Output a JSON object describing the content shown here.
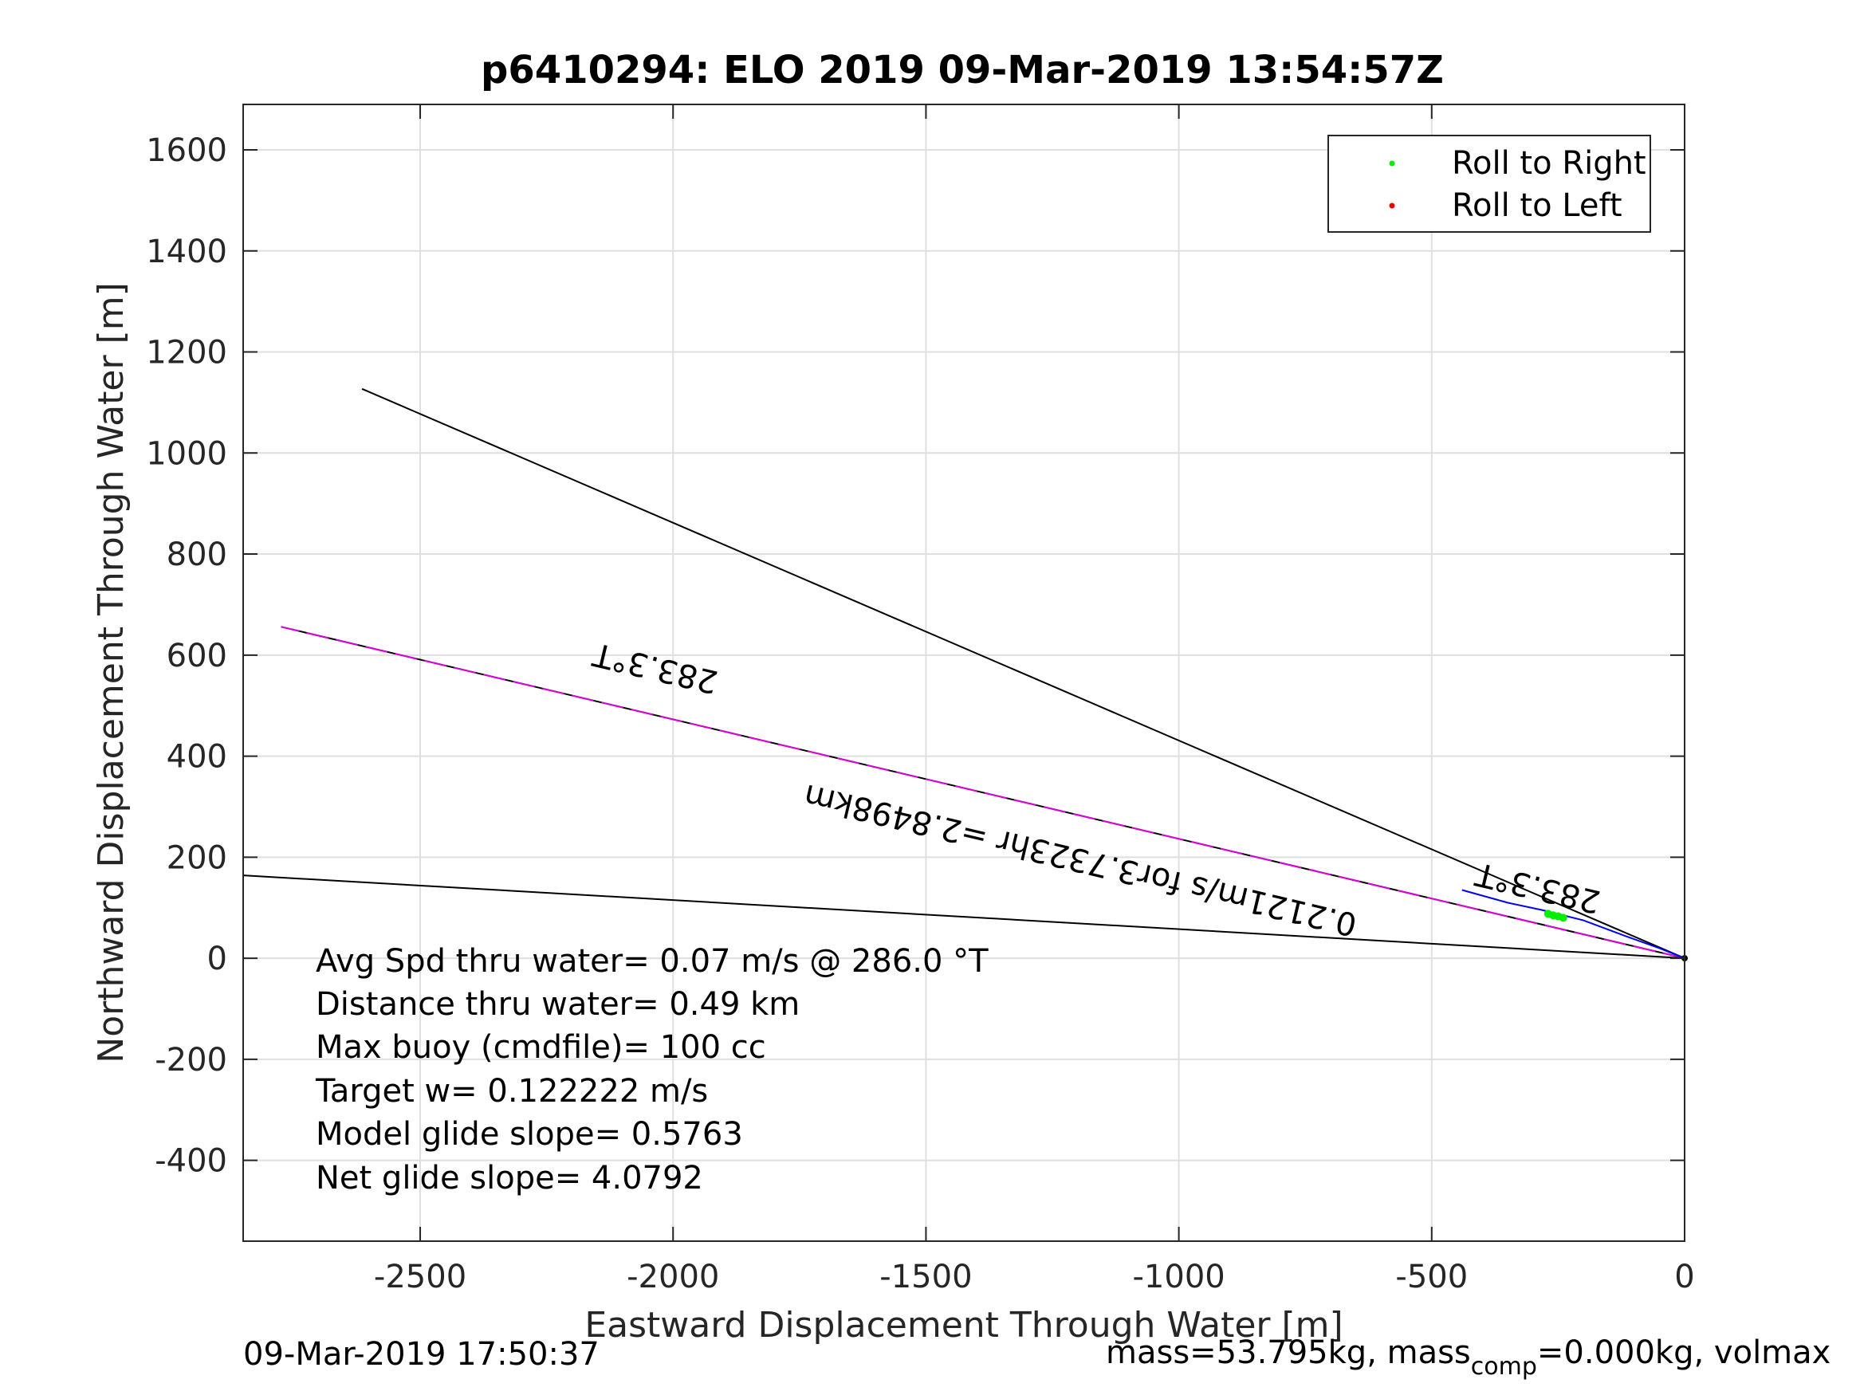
{
  "chart_data": {
    "type": "line",
    "title": "p6410294: ELO 2019 09-Mar-2019 13:54:57Z",
    "xlabel": "Eastward Displacement Through Water [m]",
    "ylabel": "Northward Displacement Through Water [m]",
    "xlim": [
      -2850,
      0
    ],
    "ylim": [
      -560,
      1690
    ],
    "xticks": [
      -2500,
      -2000,
      -1500,
      -1000,
      -500,
      0
    ],
    "yticks": [
      -400,
      -200,
      0,
      200,
      400,
      600,
      800,
      1000,
      1200,
      1400,
      1600
    ],
    "grid": true,
    "legend_position": "top-right",
    "legend": [
      {
        "label": "Roll to Right",
        "color": "#00ee00"
      },
      {
        "label": "Roll to Left",
        "color": "#ee0000"
      }
    ],
    "series": [
      {
        "name": "upper-bound-line",
        "color": "#000000",
        "x": [
          0,
          -2615
        ],
        "y": [
          0,
          1127
        ]
      },
      {
        "name": "heading-line",
        "color": "#000000",
        "x": [
          0,
          -2775
        ],
        "y": [
          0,
          656
        ]
      },
      {
        "name": "heading-line-overlay",
        "color": "#dd00dd",
        "dashed": true,
        "x": [
          0,
          -2775
        ],
        "y": [
          0,
          656
        ]
      },
      {
        "name": "lower-bound-line",
        "color": "#000000",
        "x": [
          0,
          -2850
        ],
        "y": [
          0,
          164
        ]
      },
      {
        "name": "glider-track",
        "color": "#0000ff",
        "x": [
          0,
          -50,
          -120,
          -200,
          -280,
          -350,
          -440
        ],
        "y": [
          0,
          20,
          45,
          75,
          95,
          110,
          135
        ]
      },
      {
        "name": "roll-right",
        "color": "#00ee00",
        "marker": "dot",
        "x": [
          -270,
          -260,
          -250,
          -240
        ],
        "y": [
          88,
          85,
          83,
          80
        ]
      },
      {
        "name": "start-point",
        "color": "#000000",
        "marker": "dot",
        "x": [
          0
        ],
        "y": [
          0
        ]
      }
    ],
    "annotations": [
      {
        "text": "283.3°T",
        "x": -2030,
        "y": 595,
        "rotate": 193.3
      },
      {
        "text": "283.3°T",
        "x": -285,
        "y": 160,
        "rotate": 193.3
      },
      {
        "text": "0.2121m/s for3.7323hr =2.8498km",
        "x": -1190,
        "y": 215,
        "rotate": 193.3
      }
    ],
    "stats": [
      "Avg Spd thru water=  0.07 m/s @ 286.0 °T",
      "Distance thru water=  0.49 km",
      "Max buoy (cmdfile)= 100 cc",
      "Target w= 0.122222 m/s",
      "Model glide slope= 0.5763",
      "Net glide slope= 4.0792"
    ],
    "footer_left": "09-Mar-2019 17:50:37",
    "footer_right": {
      "part1": "mass=53.795kg, mass",
      "sub": "comp",
      "part2": "=0.000kg, volmax"
    }
  }
}
